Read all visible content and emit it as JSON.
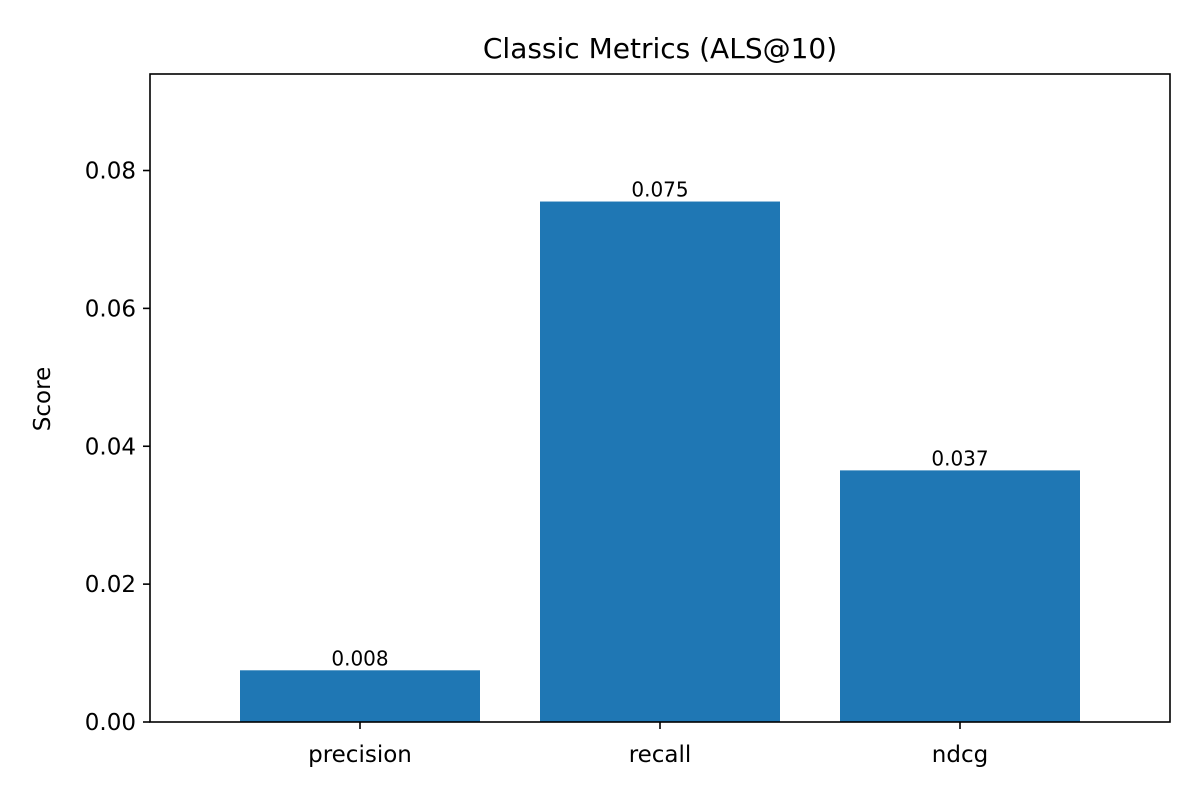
{
  "chart_data": {
    "type": "bar",
    "title": "Classic Metrics (ALS@10)",
    "xlabel": "",
    "ylabel": "Score",
    "categories": [
      "precision",
      "recall",
      "ndcg"
    ],
    "values": [
      0.0075,
      0.0755,
      0.0365
    ],
    "value_labels": [
      "0.008",
      "0.075",
      "0.037"
    ],
    "ylim": [
      0,
      0.094
    ],
    "yticks": [
      0.0,
      0.02,
      0.04,
      0.06,
      0.08
    ],
    "ytick_labels": [
      "0.00",
      "0.02",
      "0.04",
      "0.06",
      "0.08"
    ],
    "bar_color": "#1f77b4",
    "grid": false,
    "legend": "none"
  }
}
